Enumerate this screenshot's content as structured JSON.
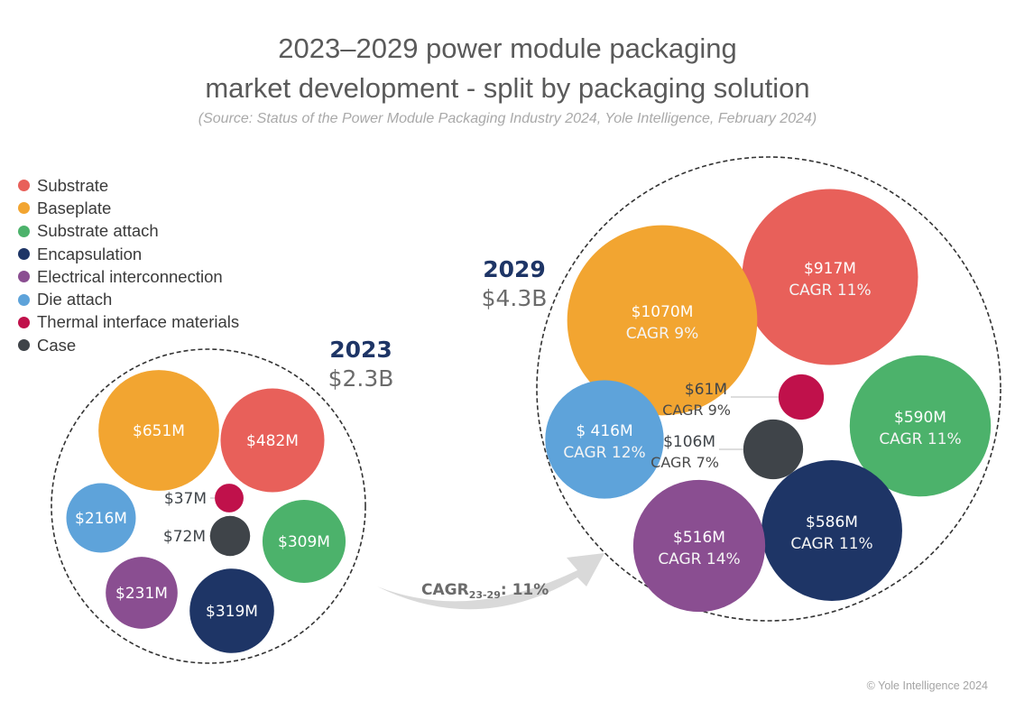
{
  "title_line1": "2023–2029 power module packaging",
  "title_line2": "market development - split by packaging solution",
  "source": "(Source: Status of the Power Module Packaging Industry 2024, Yole Intelligence, February 2024)",
  "copyright": "© Yole Intelligence 2024",
  "chart_data": {
    "type": "bubble",
    "title": "2023–2029 power module packaging market development - split by packaging solution",
    "legend_placement": "top-left",
    "categories": [
      "Substrate",
      "Baseplate",
      "Substrate attach",
      "Encapsulation",
      "Electrical interconnection",
      "Die attach",
      "Thermal interface materials",
      "Case"
    ],
    "colors": {
      "Substrate": "#e8605a",
      "Baseplate": "#f2a531",
      "Substrate attach": "#4cb26b",
      "Encapsulation": "#1e3566",
      "Electrical interconnection": "#8a4e91",
      "Die attach": "#5ea3da",
      "Thermal interface materials": "#c0114b",
      "Case": "#3f4449"
    },
    "years": [
      {
        "year": "2023",
        "total": "$2.3B",
        "unit": "$M",
        "values": {
          "Substrate": 482,
          "Baseplate": 651,
          "Substrate attach": 309,
          "Encapsulation": 319,
          "Electrical interconnection": 231,
          "Die attach": 216,
          "Thermal interface materials": 37,
          "Case": 72
        },
        "labels": {
          "Substrate": "$482M",
          "Baseplate": "$651M",
          "Substrate attach": "$309M",
          "Encapsulation": "$319M",
          "Electrical interconnection": "$231M",
          "Die attach": "$216M",
          "Thermal interface materials": "$37M",
          "Case": "$72M"
        }
      },
      {
        "year": "2029",
        "total": "$4.3B",
        "unit": "$M",
        "values": {
          "Substrate": 917,
          "Baseplate": 1070,
          "Substrate attach": 590,
          "Encapsulation": 586,
          "Electrical interconnection": 516,
          "Die attach": 416,
          "Thermal interface materials": 61,
          "Case": 106
        },
        "labels": {
          "Substrate": "$917M",
          "Baseplate": "$1070M",
          "Substrate attach": "$590M",
          "Encapsulation": "$586M",
          "Electrical interconnection": "$516M",
          "Die attach": "$ 416M",
          "Thermal interface materials": "$61M",
          "Case": "$106M"
        },
        "cagr": {
          "Substrate": "CAGR 11%",
          "Baseplate": "CAGR 9%",
          "Substrate attach": "CAGR 11%",
          "Encapsulation": "CAGR 11%",
          "Electrical interconnection": "CAGR 14%",
          "Die attach": "CAGR 12%",
          "Thermal interface materials": "CAGR 9%",
          "Case": "CAGR 7%"
        }
      }
    ],
    "overall_cagr": {
      "label": "CAGR",
      "subscript": "23-29",
      "value": ": 11%"
    }
  }
}
